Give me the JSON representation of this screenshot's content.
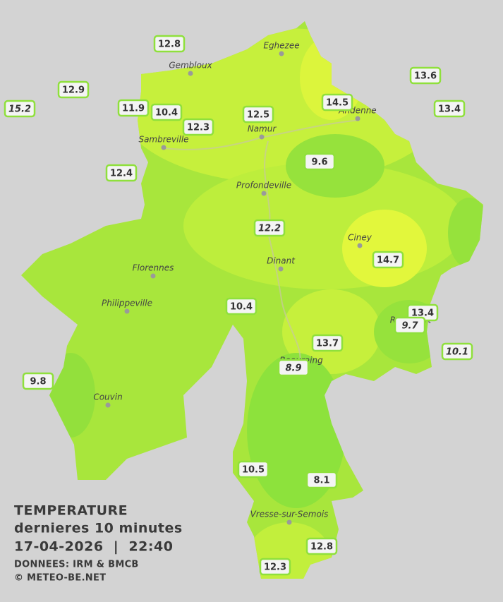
{
  "cities": [
    "Eghezee",
    "Gembloux",
    "Andenne",
    "Namur",
    "Sambreville",
    "Profondeville",
    "Ciney",
    "Dinant",
    "Florennes",
    "Philippeville",
    "Rochefort",
    "Beauraing",
    "Couvin",
    "Vresse-sur-Semois"
  ],
  "stations": [
    {
      "value": 12.8
    },
    {
      "value": 12.9
    },
    {
      "value": 15.2,
      "italic": true
    },
    {
      "value": 11.9
    },
    {
      "value": 10.4
    },
    {
      "value": 12.3
    },
    {
      "value": 12.5
    },
    {
      "value": 14.5
    },
    {
      "value": 13.6
    },
    {
      "value": 13.4
    },
    {
      "value": 9.6
    },
    {
      "value": 12.4
    },
    {
      "value": 12.2,
      "italic": true
    },
    {
      "value": 14.7
    },
    {
      "value": 10.4
    },
    {
      "value": 13.4
    },
    {
      "value": 9.7,
      "italic": true
    },
    {
      "value": 13.7
    },
    {
      "value": 10.1,
      "italic": true
    },
    {
      "value": 8.9,
      "italic": true
    },
    {
      "value": 9.8
    },
    {
      "value": 10.5
    },
    {
      "value": 8.1
    },
    {
      "value": 12.8
    },
    {
      "value": 12.3
    }
  ],
  "caption": {
    "title": "TEMPERATURE",
    "subtitle": "dernieres 10 minutes",
    "datetime": "17-04-2026  |  22:40",
    "source": "DONNEES: IRM & BMCB",
    "copyright": "© METEO-BE.NET"
  }
}
